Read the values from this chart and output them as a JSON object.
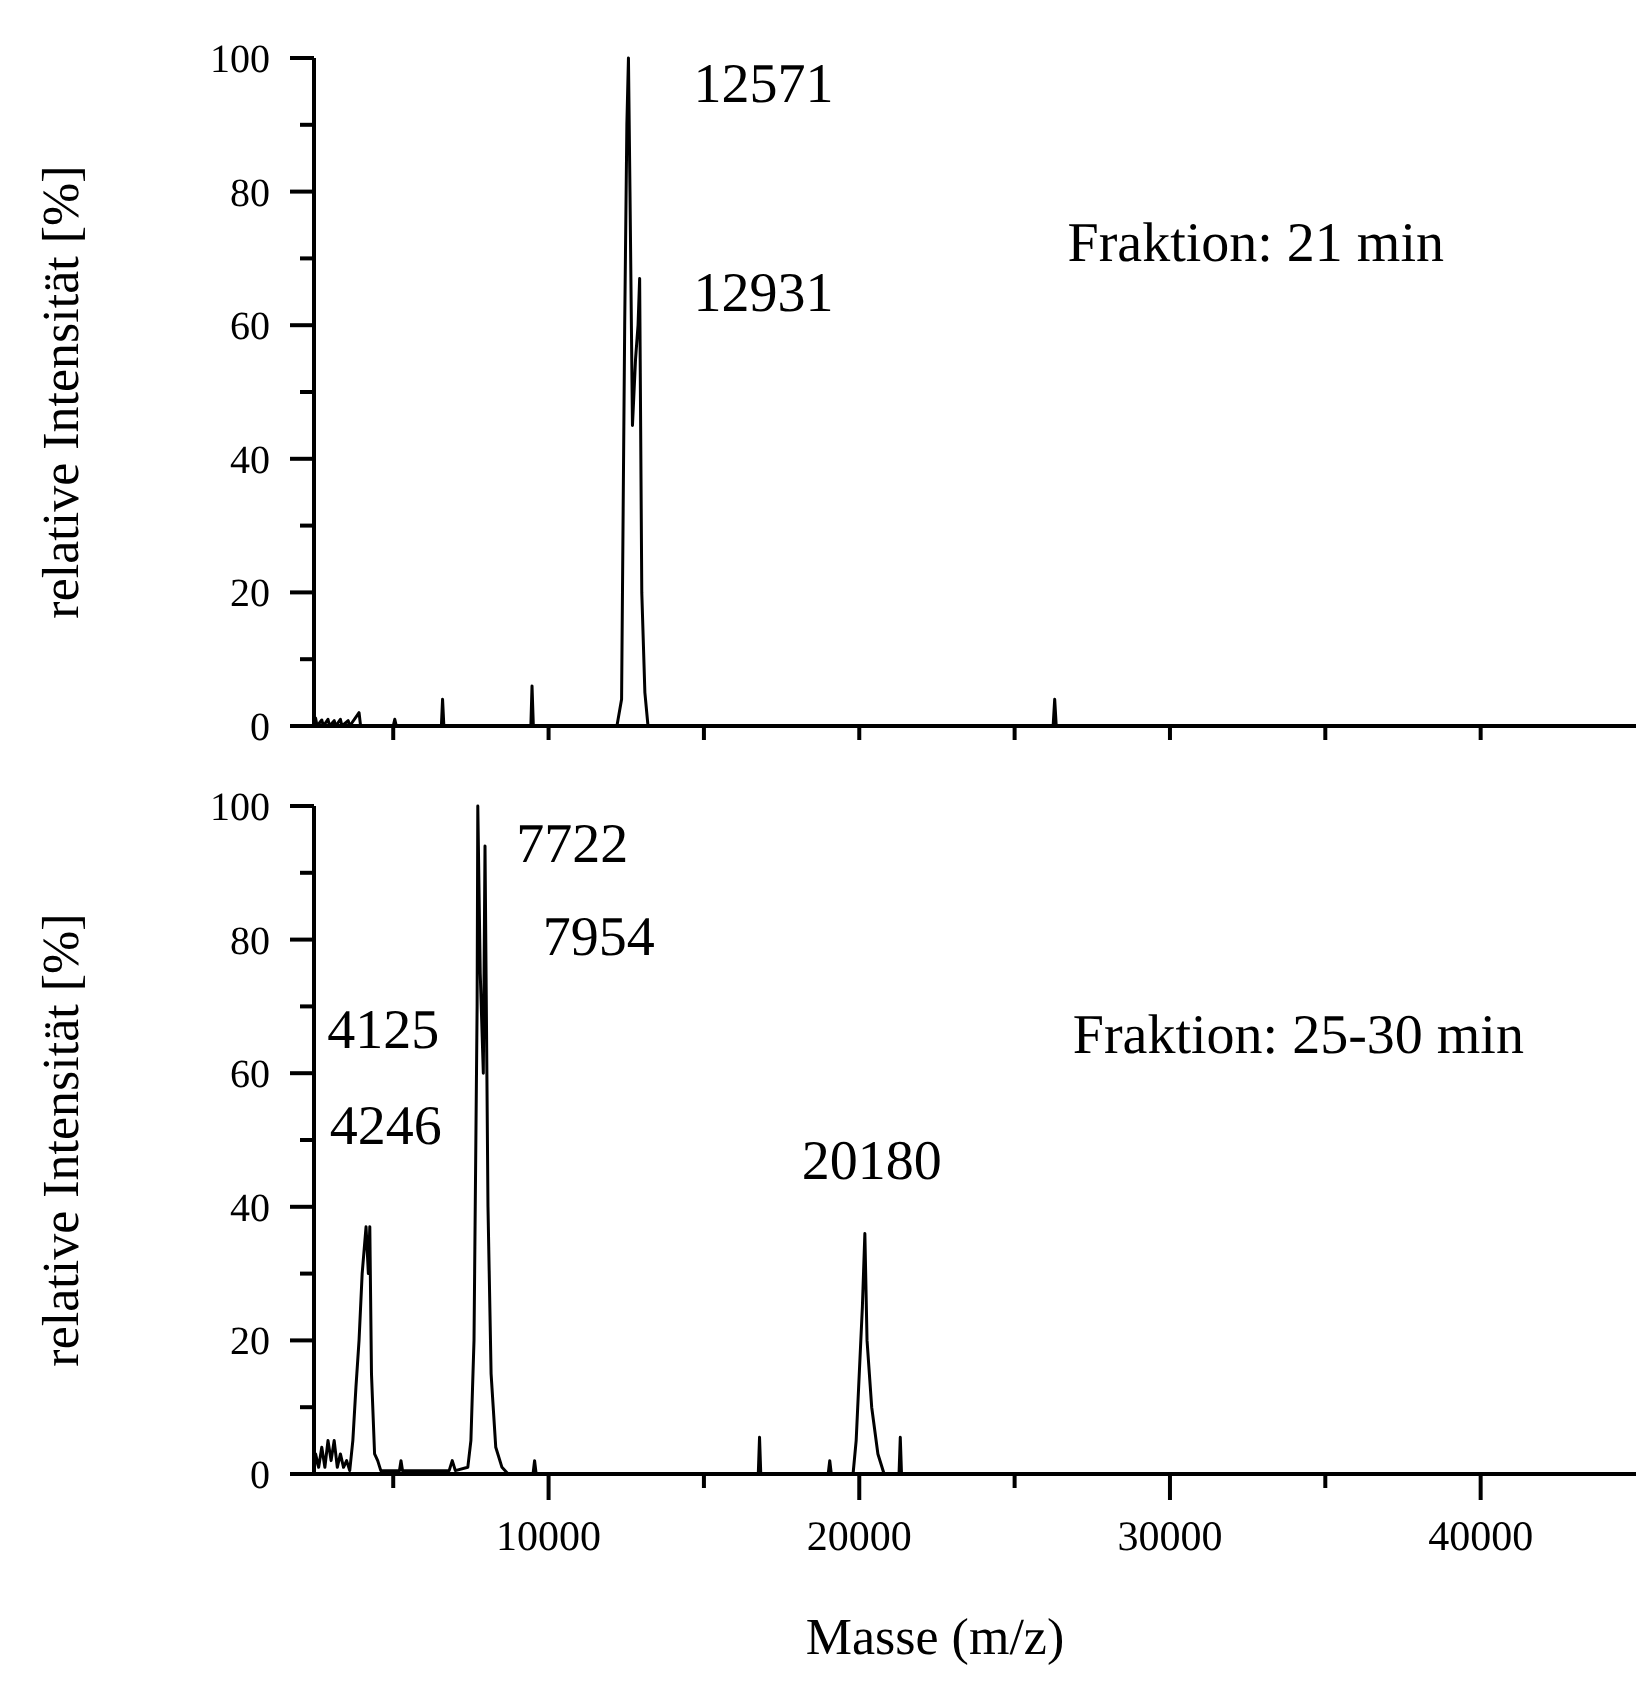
{
  "chart_data": [
    {
      "type": "line",
      "ylabel": "relative Intensität [%]",
      "xlim": [
        2450,
        45000
      ],
      "ylim": [
        0,
        100
      ],
      "xticks": [
        {
          "value": 5000,
          "label": null
        },
        {
          "value": 10000,
          "label": null
        },
        {
          "value": 15000,
          "label": null
        },
        {
          "value": 20000,
          "label": null
        },
        {
          "value": 25000,
          "label": null
        },
        {
          "value": 30000,
          "label": null
        },
        {
          "value": 35000,
          "label": null
        },
        {
          "value": 40000,
          "label": null
        }
      ],
      "yticks": [
        0,
        {
          "value": 10,
          "label": null
        },
        20,
        {
          "value": 30,
          "label": null
        },
        40,
        {
          "value": 50,
          "label": null
        },
        60,
        {
          "value": 70,
          "label": null
        },
        80,
        {
          "value": 90,
          "label": null
        },
        100
      ],
      "tick_labels": "y",
      "grid": false,
      "series": [
        {
          "color": "#000000",
          "x": [
            2450,
            2500,
            2550,
            2700,
            2750,
            2900,
            2950,
            3100,
            3150,
            3300,
            3350,
            3550,
            3600,
            3900,
            3950,
            5000,
            5050,
            5100,
            6550,
            6588,
            6630,
            9430,
            9467,
            9510,
            12200,
            12350,
            12450,
            12520,
            12571,
            12620,
            12700,
            12800,
            12880,
            12931,
            13000,
            13100,
            13200,
            26240,
            26290,
            26340,
            45000
          ],
          "values": [
            0,
            1.2,
            0,
            0.9,
            0,
            1,
            0,
            0.8,
            0,
            1,
            0,
            0.8,
            0,
            2,
            0,
            0,
            1,
            0,
            0,
            4,
            0,
            0,
            6,
            0,
            0,
            4,
            60,
            90,
            100,
            80,
            45,
            55,
            60,
            67,
            20,
            5,
            0,
            0,
            4,
            0,
            0
          ]
        }
      ],
      "annotations": [
        "12571",
        "12931",
        "Fraktion: 21 min"
      ]
    },
    {
      "type": "line",
      "xlabel": "Masse (m/z)",
      "ylabel": "relative Intensität [%]",
      "xlim": [
        2450,
        45000
      ],
      "ylim": [
        0,
        100
      ],
      "xticks": [
        {
          "value": 5000,
          "label": null
        },
        10000,
        {
          "value": 15000,
          "label": null
        },
        20000,
        {
          "value": 25000,
          "label": null
        },
        30000,
        {
          "value": 35000,
          "label": null
        },
        40000
      ],
      "yticks": [
        0,
        {
          "value": 10,
          "label": null
        },
        20,
        {
          "value": 30,
          "label": null
        },
        40,
        {
          "value": 50,
          "label": null
        },
        60,
        {
          "value": 70,
          "label": null
        },
        80,
        {
          "value": 90,
          "label": null
        },
        100
      ],
      "grid": false,
      "series": [
        {
          "color": "#000000",
          "x": [
            2450,
            2500,
            2600,
            2700,
            2800,
            2900,
            3000,
            3100,
            3200,
            3300,
            3400,
            3500,
            3600,
            3700,
            3800,
            3900,
            4000,
            4125,
            4200,
            4246,
            4300,
            4400,
            4500,
            4600,
            5200,
            5250,
            5300,
            6800,
            6900,
            7000,
            7400,
            7500,
            7600,
            7700,
            7722,
            7800,
            7900,
            7954,
            8050,
            8150,
            8300,
            8500,
            8700,
            9500,
            9550,
            9600,
            16750,
            16790,
            16830,
            19000,
            19050,
            19100,
            19800,
            19900,
            20000,
            20100,
            20180,
            20250,
            20400,
            20600,
            20800,
            21280,
            21320,
            21360,
            45000
          ],
          "values": [
            0,
            3,
            1,
            4,
            1,
            5,
            2,
            5,
            1,
            3,
            1,
            2,
            0.5,
            5,
            13,
            20,
            30,
            37,
            30,
            37,
            15,
            3,
            2,
            0.5,
            0.5,
            2,
            0.5,
            0.5,
            2,
            0.5,
            1,
            5,
            20,
            70,
            100,
            75,
            60,
            94,
            40,
            15,
            4,
            1,
            0,
            0,
            2,
            0,
            0,
            5.5,
            0,
            0,
            2,
            0,
            0,
            5,
            15,
            25,
            36,
            20,
            10,
            3,
            0,
            0,
            5.5,
            0,
            0
          ]
        }
      ],
      "annotations": [
        "7722",
        "7954",
        "4125",
        "4246",
        "20180",
        "Fraktion: 25-30 min"
      ]
    }
  ]
}
